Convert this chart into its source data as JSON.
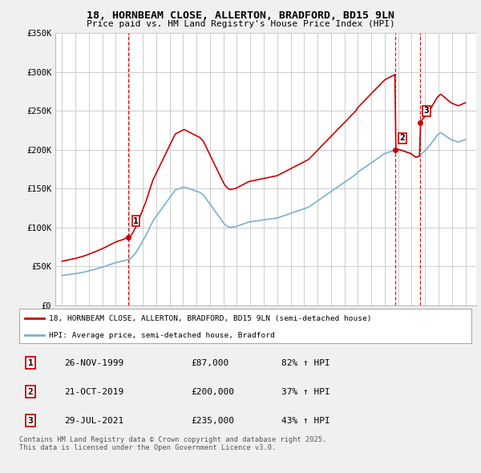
{
  "title": "18, HORNBEAM CLOSE, ALLERTON, BRADFORD, BD15 9LN",
  "subtitle": "Price paid vs. HM Land Registry's House Price Index (HPI)",
  "legend_line1": "18, HORNBEAM CLOSE, ALLERTON, BRADFORD, BD15 9LN (semi-detached house)",
  "legend_line2": "HPI: Average price, semi-detached house, Bradford",
  "transactions": [
    {
      "num": 1,
      "date": "26-NOV-1999",
      "price": 87000,
      "hpi_change": "82% ↑ HPI",
      "year": 1999.9
    },
    {
      "num": 2,
      "date": "21-OCT-2019",
      "price": 200000,
      "hpi_change": "37% ↑ HPI",
      "year": 2019.8
    },
    {
      "num": 3,
      "date": "29-JUL-2021",
      "price": 235000,
      "hpi_change": "43% ↑ HPI",
      "year": 2021.6
    }
  ],
  "footnote": "Contains HM Land Registry data © Crown copyright and database right 2025.\nThis data is licensed under the Open Government Licence v3.0.",
  "property_color": "#cc0000",
  "hpi_color": "#7bafd4",
  "vline_color": "#cc0000",
  "grid_color": "#cccccc",
  "bg_color": "#ffffff",
  "fig_bg": "#f0f0f0",
  "hpi_years": [
    1995.0,
    1995.08,
    1995.17,
    1995.25,
    1995.33,
    1995.42,
    1995.5,
    1995.58,
    1995.67,
    1995.75,
    1995.83,
    1995.92,
    1996.0,
    1996.08,
    1996.17,
    1996.25,
    1996.33,
    1996.42,
    1996.5,
    1996.58,
    1996.67,
    1996.75,
    1996.83,
    1996.92,
    1997.0,
    1997.08,
    1997.17,
    1997.25,
    1997.33,
    1997.42,
    1997.5,
    1997.58,
    1997.67,
    1997.75,
    1997.83,
    1997.92,
    1998.0,
    1998.08,
    1998.17,
    1998.25,
    1998.33,
    1998.42,
    1998.5,
    1998.58,
    1998.67,
    1998.75,
    1998.83,
    1998.92,
    1999.0,
    1999.08,
    1999.17,
    1999.25,
    1999.33,
    1999.42,
    1999.5,
    1999.58,
    1999.67,
    1999.75,
    1999.83,
    1999.92,
    2000.0,
    2000.08,
    2000.17,
    2000.25,
    2000.33,
    2000.42,
    2000.5,
    2000.58,
    2000.67,
    2000.75,
    2000.83,
    2000.92,
    2001.0,
    2001.08,
    2001.17,
    2001.25,
    2001.33,
    2001.42,
    2001.5,
    2001.58,
    2001.67,
    2001.75,
    2001.83,
    2001.92,
    2002.0,
    2002.08,
    2002.17,
    2002.25,
    2002.33,
    2002.42,
    2002.5,
    2002.58,
    2002.67,
    2002.75,
    2002.83,
    2002.92,
    2003.0,
    2003.08,
    2003.17,
    2003.25,
    2003.33,
    2003.42,
    2003.5,
    2003.58,
    2003.67,
    2003.75,
    2003.83,
    2003.92,
    2004.0,
    2004.08,
    2004.17,
    2004.25,
    2004.33,
    2004.42,
    2004.5,
    2004.58,
    2004.67,
    2004.75,
    2004.83,
    2004.92,
    2005.0,
    2005.08,
    2005.17,
    2005.25,
    2005.33,
    2005.42,
    2005.5,
    2005.58,
    2005.67,
    2005.75,
    2005.83,
    2005.92,
    2006.0,
    2006.08,
    2006.17,
    2006.25,
    2006.33,
    2006.42,
    2006.5,
    2006.58,
    2006.67,
    2006.75,
    2006.83,
    2006.92,
    2007.0,
    2007.08,
    2007.17,
    2007.25,
    2007.33,
    2007.42,
    2007.5,
    2007.58,
    2007.67,
    2007.75,
    2007.83,
    2007.92,
    2008.0,
    2008.08,
    2008.17,
    2008.25,
    2008.33,
    2008.42,
    2008.5,
    2008.58,
    2008.67,
    2008.75,
    2008.83,
    2008.92,
    2009.0,
    2009.08,
    2009.17,
    2009.25,
    2009.33,
    2009.42,
    2009.5,
    2009.58,
    2009.67,
    2009.75,
    2009.83,
    2009.92,
    2010.0,
    2010.08,
    2010.17,
    2010.25,
    2010.33,
    2010.42,
    2010.5,
    2010.58,
    2010.67,
    2010.75,
    2010.83,
    2010.92,
    2011.0,
    2011.08,
    2011.17,
    2011.25,
    2011.33,
    2011.42,
    2011.5,
    2011.58,
    2011.67,
    2011.75,
    2011.83,
    2011.92,
    2012.0,
    2012.08,
    2012.17,
    2012.25,
    2012.33,
    2012.42,
    2012.5,
    2012.58,
    2012.67,
    2012.75,
    2012.83,
    2012.92,
    2013.0,
    2013.08,
    2013.17,
    2013.25,
    2013.33,
    2013.42,
    2013.5,
    2013.58,
    2013.67,
    2013.75,
    2013.83,
    2013.92,
    2014.0,
    2014.08,
    2014.17,
    2014.25,
    2014.33,
    2014.42,
    2014.5,
    2014.58,
    2014.67,
    2014.75,
    2014.83,
    2014.92,
    2015.0,
    2015.08,
    2015.17,
    2015.25,
    2015.33,
    2015.42,
    2015.5,
    2015.58,
    2015.67,
    2015.75,
    2015.83,
    2015.92,
    2016.0,
    2016.08,
    2016.17,
    2016.25,
    2016.33,
    2016.42,
    2016.5,
    2016.58,
    2016.67,
    2016.75,
    2016.83,
    2016.92,
    2017.0,
    2017.08,
    2017.17,
    2017.25,
    2017.33,
    2017.42,
    2017.5,
    2017.58,
    2017.67,
    2017.75,
    2017.83,
    2017.92,
    2018.0,
    2018.08,
    2018.17,
    2018.25,
    2018.33,
    2018.42,
    2018.5,
    2018.58,
    2018.67,
    2018.75,
    2018.83,
    2018.92,
    2019.0,
    2019.08,
    2019.17,
    2019.25,
    2019.33,
    2019.42,
    2019.5,
    2019.58,
    2019.67,
    2019.75,
    2019.83,
    2019.92,
    2020.0,
    2020.08,
    2020.17,
    2020.25,
    2020.33,
    2020.42,
    2020.5,
    2020.58,
    2020.67,
    2020.75,
    2020.83,
    2020.92,
    2021.0,
    2021.08,
    2021.17,
    2021.25,
    2021.33,
    2021.42,
    2021.5,
    2021.58,
    2021.67,
    2021.75,
    2021.83,
    2021.92,
    2022.0,
    2022.08,
    2022.17,
    2022.25,
    2022.33,
    2022.42,
    2022.5,
    2022.58,
    2022.67,
    2022.75,
    2022.83,
    2022.92,
    2023.0,
    2023.08,
    2023.17,
    2023.25,
    2023.33,
    2023.42,
    2023.5,
    2023.58,
    2023.67,
    2023.75,
    2023.83,
    2023.92,
    2024.0,
    2024.08,
    2024.17,
    2024.25,
    2024.33,
    2024.42,
    2024.5,
    2024.58,
    2024.67,
    2024.75,
    2024.83,
    2024.92,
    2025.0
  ],
  "hpi_values": [
    38000,
    38200,
    38400,
    38600,
    38800,
    39000,
    39200,
    39400,
    39600,
    39800,
    40000,
    40200,
    40400,
    40700,
    41000,
    41200,
    41500,
    41800,
    42000,
    42300,
    42600,
    43000,
    43300,
    43700,
    44000,
    44400,
    44800,
    45200,
    45600,
    46000,
    46400,
    46800,
    47200,
    47600,
    48000,
    48400,
    48800,
    49300,
    49800,
    50200,
    50700,
    51200,
    51700,
    52200,
    52700,
    53200,
    53700,
    54200,
    54700,
    55000,
    55400,
    55700,
    56000,
    56300,
    56600,
    57000,
    57400,
    57800,
    58200,
    58600,
    59000,
    60000,
    61000,
    62500,
    64000,
    66000,
    68000,
    70000,
    72500,
    75000,
    77500,
    80000,
    82500,
    85000,
    87500,
    90000,
    93000,
    96000,
    99000,
    102000,
    105000,
    108000,
    110000,
    112000,
    114000,
    116000,
    118000,
    120000,
    122000,
    124000,
    126000,
    128000,
    130000,
    132000,
    134000,
    136000,
    138000,
    140000,
    142000,
    144000,
    146000,
    148000,
    148500,
    149000,
    149500,
    150000,
    150500,
    151000,
    151500,
    152000,
    151500,
    151000,
    150500,
    150000,
    149500,
    149000,
    148500,
    148000,
    147500,
    147000,
    146500,
    146000,
    145500,
    145000,
    144000,
    143000,
    142000,
    140000,
    138000,
    136000,
    134000,
    132000,
    130000,
    128000,
    126000,
    124000,
    122000,
    120000,
    118000,
    116000,
    114000,
    112000,
    110000,
    108000,
    106000,
    104500,
    103000,
    102000,
    101000,
    100500,
    100000,
    100200,
    100400,
    100600,
    100800,
    101000,
    101500,
    102000,
    102500,
    103000,
    103500,
    104000,
    104500,
    105000,
    105500,
    106000,
    106500,
    107000,
    107200,
    107400,
    107600,
    107800,
    108000,
    108200,
    108400,
    108600,
    108800,
    109000,
    109200,
    109400,
    109600,
    109800,
    110000,
    110200,
    110400,
    110600,
    110800,
    111000,
    111200,
    111400,
    111600,
    111800,
    112000,
    112500,
    113000,
    113500,
    114000,
    114500,
    115000,
    115500,
    116000,
    116500,
    117000,
    117500,
    118000,
    118500,
    119000,
    119500,
    120000,
    120500,
    121000,
    121500,
    122000,
    122500,
    123000,
    123500,
    124000,
    124500,
    125000,
    125500,
    126000,
    127000,
    128000,
    129000,
    130000,
    131000,
    132000,
    133000,
    134000,
    135000,
    136000,
    137000,
    138000,
    139000,
    140000,
    141000,
    142000,
    143000,
    144000,
    145000,
    146000,
    147000,
    148000,
    149000,
    150000,
    151000,
    152000,
    153000,
    154000,
    155000,
    156000,
    157000,
    158000,
    159000,
    160000,
    161000,
    162000,
    163000,
    164000,
    165000,
    166000,
    167000,
    168000,
    169500,
    171000,
    172000,
    173000,
    174000,
    175000,
    176000,
    177000,
    178000,
    179000,
    180000,
    181000,
    182000,
    183000,
    184000,
    185000,
    186000,
    187000,
    188000,
    189000,
    190000,
    191000,
    192000,
    193000,
    194000,
    195000,
    195500,
    196000,
    196500,
    197000,
    197500,
    198000,
    198500,
    199000,
    199500,
    200000,
    200200,
    200100,
    199800,
    199500,
    199000,
    198500,
    198000,
    197500,
    197000,
    196500,
    196000,
    195500,
    195000,
    194000,
    193000,
    192000,
    191000,
    190000,
    190500,
    191000,
    192000,
    193000,
    194500,
    196000,
    197500,
    199000,
    200500,
    202000,
    203500,
    205000,
    207000,
    209000,
    211000,
    213000,
    215000,
    217000,
    219000,
    220000,
    221000,
    222000,
    221000,
    220000,
    219000,
    218000,
    217000,
    216000,
    215000,
    214000,
    213000,
    212500,
    212000,
    211500,
    211000,
    210500,
    210000,
    210000,
    210500,
    211000,
    211500,
    212000,
    212500,
    213000
  ]
}
